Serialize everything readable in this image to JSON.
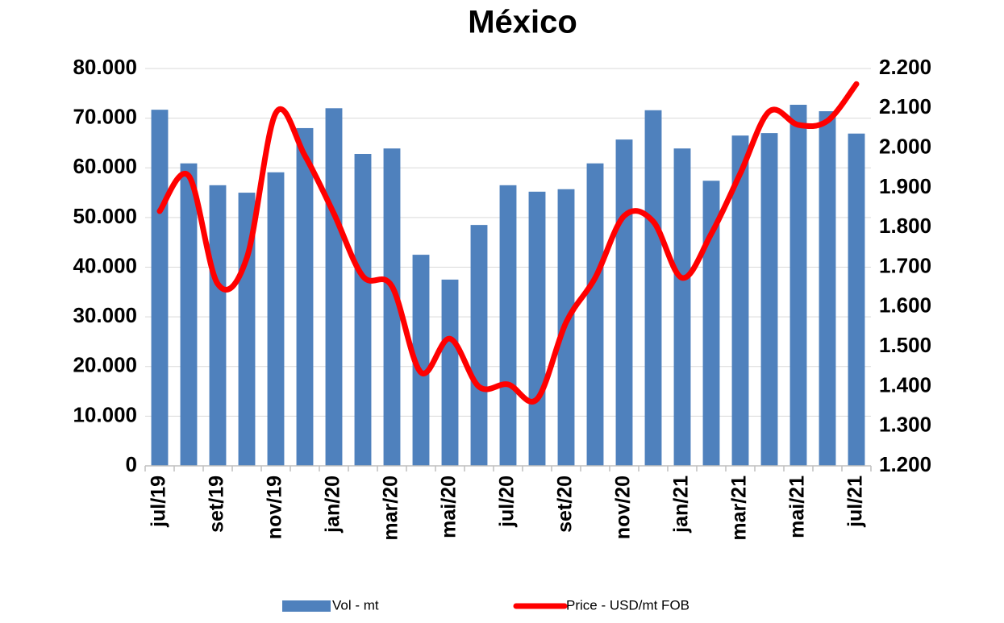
{
  "chart_data": {
    "type": "bar-line",
    "title": "México",
    "categories": [
      "jul/19",
      null,
      "set/19",
      null,
      "nov/19",
      null,
      "jan/20",
      null,
      "mar/20",
      null,
      "mai/20",
      null,
      "jul/20",
      null,
      "set/20",
      null,
      "nov/20",
      null,
      "jan/21",
      null,
      "mar/21",
      null,
      "mai/21",
      null,
      "jul/21"
    ],
    "series": [
      {
        "name": "Vol - mt",
        "type": "bar",
        "color": "#4f81bd",
        "values": [
          71700,
          60900,
          56500,
          55000,
          59100,
          68000,
          72000,
          62800,
          63900,
          42500,
          37500,
          48500,
          56500,
          55200,
          55700,
          60900,
          65700,
          71600,
          63900,
          57400,
          66500,
          67000,
          72700,
          71400,
          66900
        ]
      },
      {
        "name": "Price - USD/mt FOB",
        "type": "line",
        "axis": "y2",
        "smooth": true,
        "color": "#ff0000",
        "values": [
          1.841,
          1.93,
          1.658,
          1.723,
          2.088,
          1.981,
          1.835,
          1.677,
          1.652,
          1.435,
          1.52,
          1.399,
          1.405,
          1.368,
          1.561,
          1.673,
          1.829,
          1.815,
          1.673,
          1.784,
          1.936,
          2.092,
          2.058,
          2.068,
          2.161
        ]
      }
    ],
    "ylim": [
      0,
      80000
    ],
    "yticks": [
      0,
      {
        "value": 10000,
        "label": "10.000"
      },
      {
        "value": 20000,
        "label": "20.000"
      },
      {
        "value": 30000,
        "label": "30.000"
      },
      {
        "value": 40000,
        "label": "40.000"
      },
      {
        "value": 50000,
        "label": "50.000"
      },
      {
        "value": 60000,
        "label": "60.000"
      },
      {
        "value": 70000,
        "label": "70.000"
      },
      {
        "value": 80000,
        "label": "80.000"
      }
    ],
    "y2lim": [
      1.2,
      2.2
    ],
    "y2ticks": [
      {
        "value": 1.2,
        "label": "1.200"
      },
      {
        "value": 1.3,
        "label": "1.300"
      },
      {
        "value": 1.4,
        "label": "1.400"
      },
      {
        "value": 1.5,
        "label": "1.500"
      },
      {
        "value": 1.6,
        "label": "1.600"
      },
      {
        "value": 1.7,
        "label": "1.700"
      },
      {
        "value": 1.8,
        "label": "1.800"
      },
      {
        "value": 1.9,
        "label": "1.900"
      },
      {
        "value": 2.0,
        "label": "2.000"
      },
      {
        "value": 2.1,
        "label": "2.100"
      },
      {
        "value": 2.2,
        "label": "2.200"
      }
    ],
    "grid": true,
    "legend": "bottom"
  }
}
